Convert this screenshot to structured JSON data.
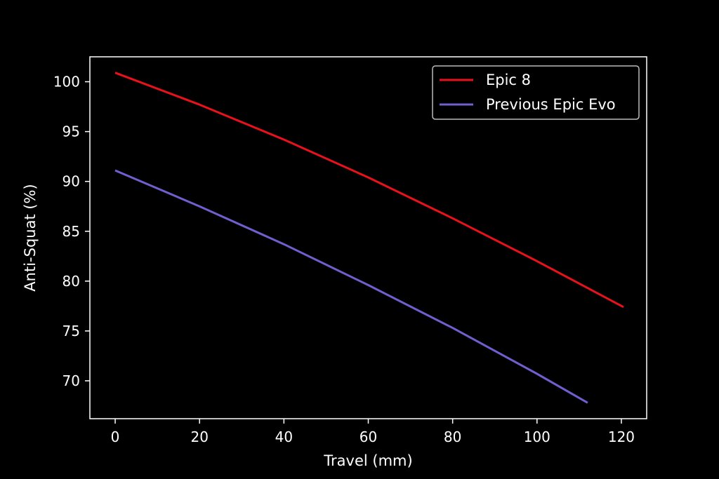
{
  "chart_data": {
    "type": "line",
    "title": "",
    "xlabel": "Travel (mm)",
    "ylabel": "Anti-Squat (%)",
    "xlim": [
      -6,
      126
    ],
    "ylim": [
      66.2,
      102.5
    ],
    "xticks": [
      0,
      20,
      40,
      60,
      80,
      100,
      120
    ],
    "yticks": [
      70,
      75,
      80,
      85,
      90,
      95,
      100
    ],
    "grid": false,
    "legend": "top-right",
    "background": "#000000",
    "axes_color": "#ffffff",
    "series": [
      {
        "name": "Epic 8",
        "color": "#e8111c",
        "x": [
          0,
          20,
          40,
          60,
          80,
          100,
          120.5
        ],
        "y": [
          100.9,
          97.7,
          94.2,
          90.4,
          86.3,
          82.0,
          77.4
        ]
      },
      {
        "name": "Previous Epic Evo",
        "color": "#6f5fcf",
        "x": [
          0,
          20,
          40,
          60,
          80,
          100,
          112
        ],
        "y": [
          91.1,
          87.5,
          83.7,
          79.6,
          75.3,
          70.7,
          67.8
        ]
      }
    ]
  }
}
